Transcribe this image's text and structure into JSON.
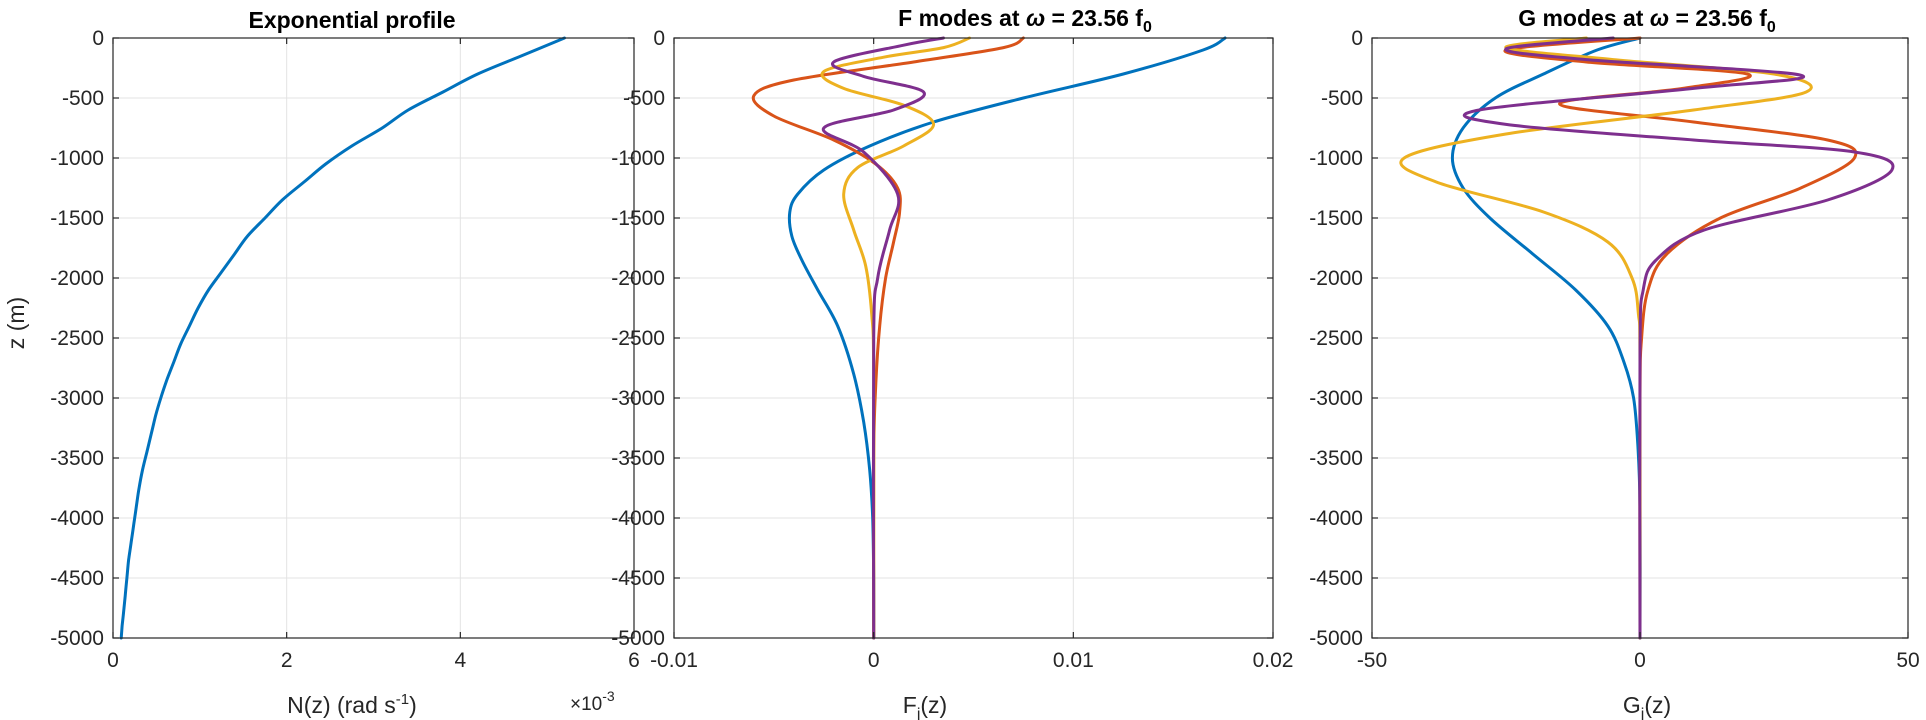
{
  "colors": {
    "mode1": "#0072BD",
    "mode2": "#D95319",
    "mode3": "#EDB120",
    "mode4": "#7E2F8E"
  },
  "chart_data": [
    {
      "type": "line",
      "title": "Exponential profile",
      "xlabel": "N(z) (rad s",
      "xlabel_sup": "-1",
      "xlabel_tail": ")",
      "ylabel": "z (m)",
      "exponent_label": "×10",
      "exponent_sup": "-3",
      "xlim": [
        0,
        6
      ],
      "ylim": [
        -5000,
        0
      ],
      "xticks": [
        "0",
        "2",
        "4",
        "6"
      ],
      "xtick_values": [
        0,
        2,
        4,
        6
      ],
      "yticks": [
        "0",
        "-500",
        "-1000",
        "-1500",
        "-2000",
        "-2500",
        "-3000",
        "-3500",
        "-4000",
        "-4500",
        "-5000"
      ],
      "ytick_values": [
        0,
        -500,
        -1000,
        -1500,
        -2000,
        -2500,
        -3000,
        -3500,
        -4000,
        -4500,
        -5000
      ],
      "grid": true,
      "series": [
        {
          "color": "#0072BD",
          "x": [
            5.2,
            4.7,
            4.2,
            3.8,
            3.4,
            3.1,
            2.75,
            2.45,
            2.2,
            1.95,
            1.75,
            1.55,
            1.4,
            1.25,
            1.1,
            0.98,
            0.88,
            0.78,
            0.7,
            0.62,
            0.55,
            0.49,
            0.44,
            0.39,
            0.34,
            0.3,
            0.27,
            0.24,
            0.21,
            0.18,
            0.16,
            0.14,
            0.12,
            0.105,
            0.095
          ],
          "y": [
            0,
            -150,
            -300,
            -450,
            -600,
            -750,
            -900,
            -1050,
            -1200,
            -1350,
            -1500,
            -1650,
            -1800,
            -1950,
            -2100,
            -2250,
            -2400,
            -2550,
            -2700,
            -2850,
            -3000,
            -3150,
            -3300,
            -3450,
            -3600,
            -3750,
            -3900,
            -4050,
            -4200,
            -4350,
            -4500,
            -4650,
            -4800,
            -4900,
            -5000
          ]
        }
      ]
    },
    {
      "type": "line",
      "title": "F modes at ",
      "title_symbol": "ω",
      "title_tail": " = 23.56 f",
      "title_sub": "0",
      "xlabel": "F",
      "xlabel_sub": "j",
      "xlabel_tail": "(z)",
      "xlim": [
        -0.01,
        0.02
      ],
      "ylim": [
        -5000,
        0
      ],
      "xticks": [
        "-0.01",
        "0",
        "0.01",
        "0.02"
      ],
      "xtick_values": [
        -0.01,
        0,
        0.01,
        0.02
      ],
      "yticks": [
        "0",
        "-500",
        "-1000",
        "-1500",
        "-2000",
        "-2500",
        "-3000",
        "-3500",
        "-4000",
        "-4500",
        "-5000"
      ],
      "ytick_values": [
        0,
        -500,
        -1000,
        -1500,
        -2000,
        -2500,
        -3000,
        -3500,
        -4000,
        -4500,
        -5000
      ],
      "grid": true,
      "series": [
        {
          "color": "#0072BD",
          "x": [
            0.0176,
            0.0165,
            0.0125,
            0.0075,
            0.003,
            -0.0002,
            -0.0025,
            -0.0038,
            -0.0042,
            -0.0041,
            -0.0036,
            -0.0028,
            -0.0018,
            -0.001,
            -0.0005,
            -0.0002,
            -5e-05,
            0.0,
            0.0
          ],
          "y": [
            0,
            -100,
            -300,
            -500,
            -700,
            -900,
            -1100,
            -1300,
            -1450,
            -1650,
            -1850,
            -2100,
            -2400,
            -2800,
            -3200,
            -3600,
            -4000,
            -4500,
            -5000
          ]
        },
        {
          "color": "#D95319",
          "x": [
            0.0075,
            0.0065,
            0.002,
            -0.004,
            -0.006,
            -0.005,
            -0.002,
            0.0001,
            0.0012,
            0.0013,
            0.001,
            0.0006,
            0.0003,
            0.0001,
            0.0,
            0.0
          ],
          "y": [
            0,
            -80,
            -200,
            -350,
            -480,
            -650,
            -850,
            -1050,
            -1250,
            -1450,
            -1700,
            -2000,
            -2400,
            -2900,
            -3500,
            -5000
          ]
        },
        {
          "color": "#EDB120",
          "x": [
            0.0048,
            0.0035,
            0.0005,
            -0.0025,
            -0.0015,
            0.0015,
            0.003,
            0.0015,
            -0.0008,
            -0.0015,
            -0.001,
            -0.0004,
            -0.0001,
            0.0,
            0.0
          ],
          "y": [
            0,
            -80,
            -160,
            -280,
            -420,
            -560,
            -720,
            -900,
            -1080,
            -1300,
            -1600,
            -1900,
            -2300,
            -2800,
            -5000
          ]
        },
        {
          "color": "#7E2F8E",
          "x": [
            0.0035,
            0.0015,
            -0.002,
            -0.0005,
            0.0025,
            0.001,
            -0.0025,
            -0.0005,
            0.0012,
            0.0008,
            0.0002,
            0.0,
            0.0
          ],
          "y": [
            0,
            -60,
            -200,
            -320,
            -450,
            -600,
            -750,
            -950,
            -1300,
            -1600,
            -2000,
            -2500,
            -5000
          ]
        }
      ]
    },
    {
      "type": "line",
      "title": "G modes at ",
      "title_symbol": "ω",
      "title_tail": " = 23.56 f",
      "title_sub": "0",
      "xlabel": "G",
      "xlabel_sub": "j",
      "xlabel_tail": "(z)",
      "xlim": [
        -50,
        50
      ],
      "ylim": [
        -5000,
        0
      ],
      "xticks": [
        "-50",
        "0",
        "50"
      ],
      "xtick_values": [
        -50,
        0,
        50
      ],
      "yticks": [
        "0",
        "-500",
        "-1000",
        "-1500",
        "-2000",
        "-2500",
        "-3000",
        "-3500",
        "-4000",
        "-4500",
        "-5000"
      ],
      "ytick_values": [
        0,
        -500,
        -1000,
        -1500,
        -2000,
        -2500,
        -3000,
        -3500,
        -4000,
        -4500,
        -5000
      ],
      "grid": true,
      "series": [
        {
          "color": "#0072BD",
          "x": [
            0,
            -8,
            -18,
            -27,
            -33,
            -35,
            -33,
            -28,
            -20,
            -12,
            -6,
            -3,
            -1.2,
            -0.4,
            0,
            0
          ],
          "y": [
            0,
            -100,
            -300,
            -500,
            -750,
            -1000,
            -1250,
            -1500,
            -1800,
            -2100,
            -2400,
            -2700,
            -3000,
            -3400,
            -3900,
            -5000
          ]
        },
        {
          "color": "#D95319",
          "x": [
            0,
            -25,
            -10,
            20,
            8,
            -15,
            10,
            35,
            40,
            30,
            15,
            5,
            1.5,
            0.3,
            0,
            0
          ],
          "y": [
            0,
            -100,
            -200,
            -300,
            -420,
            -550,
            -700,
            -850,
            -1000,
            -1250,
            -1500,
            -1800,
            -2100,
            -2500,
            -3000,
            -5000
          ]
        },
        {
          "color": "#EDB120",
          "x": [
            -10,
            -25,
            -5,
            25,
            31,
            10,
            -25,
            -44,
            -38,
            -18,
            -6,
            -1.5,
            -0.3,
            0,
            0
          ],
          "y": [
            0,
            -80,
            -180,
            -300,
            -450,
            -600,
            -800,
            -1000,
            -1200,
            -1450,
            -1700,
            -2000,
            -2300,
            -2700,
            -5000
          ]
        },
        {
          "color": "#7E2F8E",
          "x": [
            -5,
            -25,
            -10,
            30,
            10,
            -30,
            -25,
            10,
            40,
            47,
            35,
            12,
            3,
            0.6,
            0,
            0
          ],
          "y": [
            0,
            -90,
            -180,
            -310,
            -420,
            -600,
            -720,
            -850,
            -950,
            -1100,
            -1350,
            -1600,
            -1850,
            -2100,
            -2600,
            -5000
          ]
        }
      ]
    }
  ]
}
